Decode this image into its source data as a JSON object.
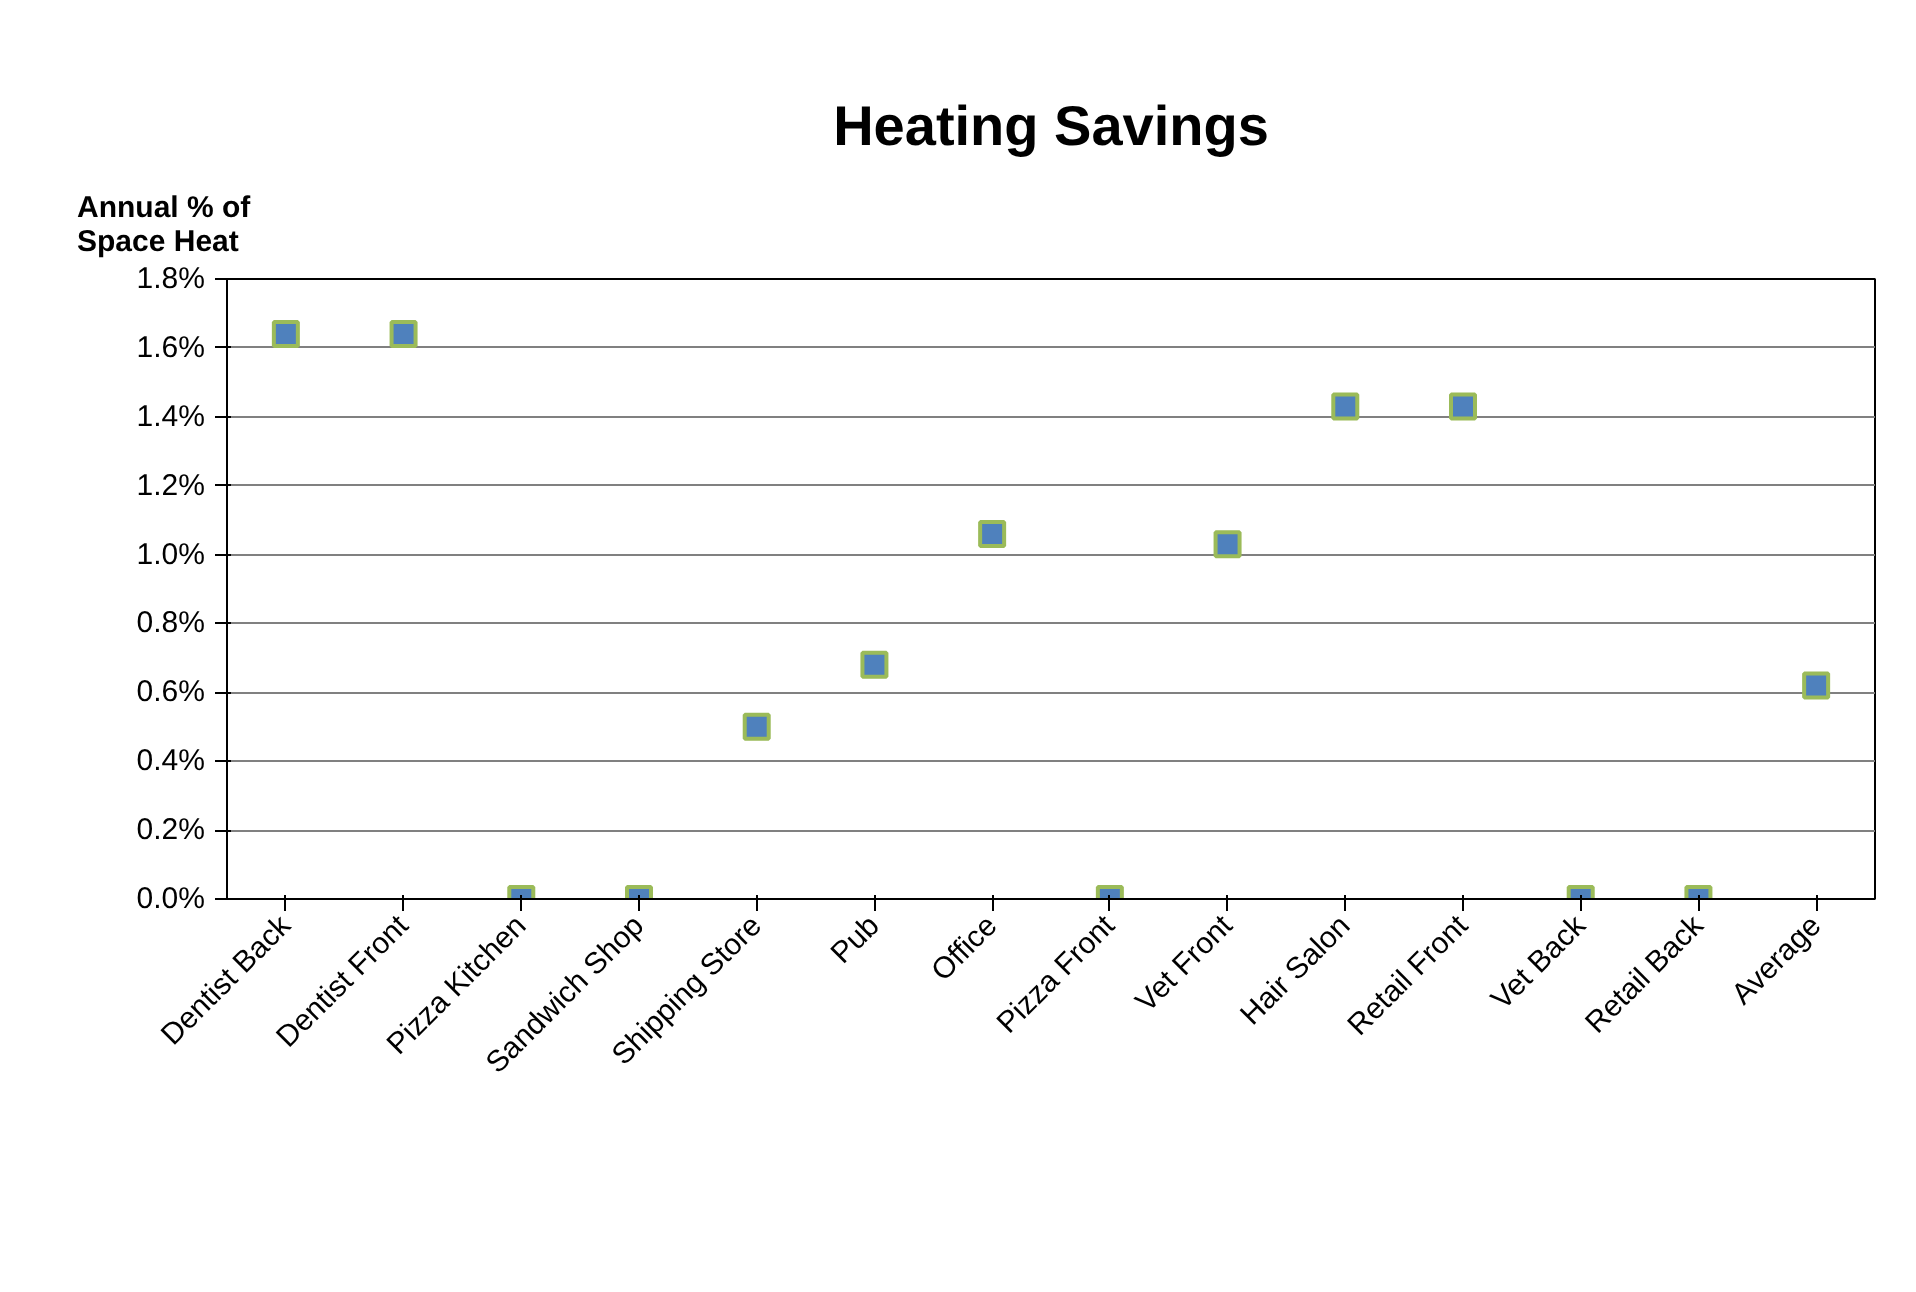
{
  "chart_data": {
    "type": "scatter",
    "title": "Heating Savings",
    "ylabel": "Annual % of Space Heat",
    "categories": [
      "Dentist Back",
      "Dentist Front",
      "Pizza Kitchen",
      "Sandwich Shop",
      "Shipping Store",
      "Pub",
      "Office",
      "Pizza Front",
      "Vet Front",
      "Hair Salon",
      "Retail Front",
      "Vet Back",
      "Retail Back",
      "Average"
    ],
    "values": [
      1.64,
      1.64,
      0,
      0,
      0.5,
      0.68,
      1.06,
      0,
      1.03,
      1.43,
      1.43,
      0,
      0,
      0.62
    ],
    "color": "#4f81bd",
    "marker": "square",
    "grid": "y",
    "ylim": [
      0,
      1.8
    ],
    "yticks": [
      {
        "value": 0,
        "label": "0.0%"
      },
      {
        "value": 0.2,
        "label": "0.2%"
      },
      {
        "value": 0.4,
        "label": "0.4%"
      },
      {
        "value": 0.6,
        "label": "0.6%"
      },
      {
        "value": 0.8,
        "label": "0.8%"
      },
      {
        "value": 1.0,
        "label": "1.0%"
      },
      {
        "value": 1.2,
        "label": "1.2%"
      },
      {
        "value": 1.4,
        "label": "1.4%"
      },
      {
        "value": 1.6,
        "label": "1.6%"
      },
      {
        "value": 1.8,
        "label": "1.8%"
      }
    ]
  }
}
